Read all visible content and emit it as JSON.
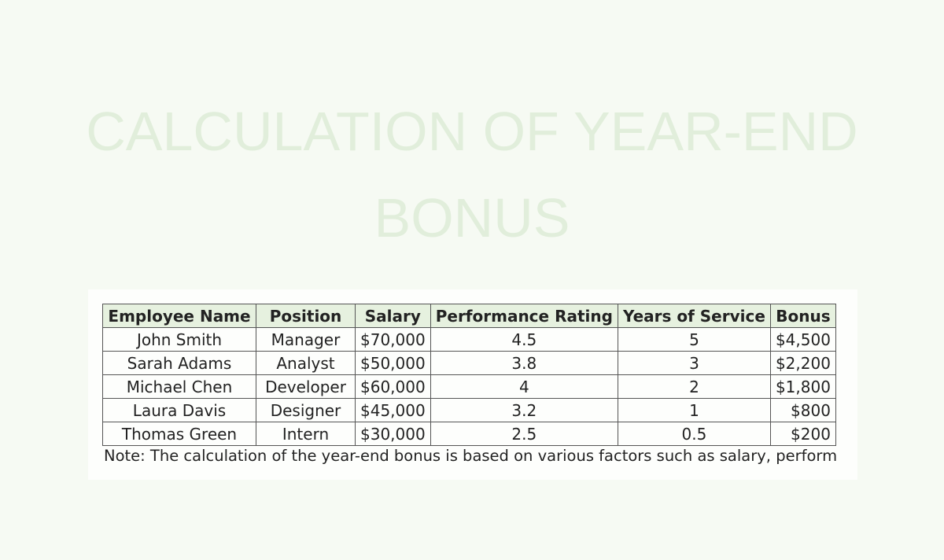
{
  "title": {
    "line1": "CALCULATION OF YEAR-END",
    "line2": "BONUS"
  },
  "table": {
    "headers": [
      "Employee Name",
      "Position",
      "Salary",
      "Performance Rating",
      "Years of Service",
      "Bonus"
    ],
    "rows": [
      [
        "John Smith",
        "Manager",
        "$70,000",
        "4.5",
        "5",
        "$4,500"
      ],
      [
        "Sarah Adams",
        "Analyst",
        "$50,000",
        "3.8",
        "3",
        "$2,200"
      ],
      [
        "Michael Chen",
        "Developer",
        "$60,000",
        "4",
        "2",
        "$1,800"
      ],
      [
        "Laura Davis",
        "Designer",
        "$45,000",
        "3.2",
        "1",
        "$800"
      ],
      [
        "Thomas Green",
        "Intern",
        "$30,000",
        "2.5",
        "0.5",
        "$200"
      ]
    ]
  },
  "note": "Note: The calculation of the year-end bonus is based on various factors such as salary, perform",
  "colors": {
    "background": "#f6faf3",
    "title": "#e1eedb",
    "header_fill": "#e6f1df",
    "border": "#555555"
  }
}
